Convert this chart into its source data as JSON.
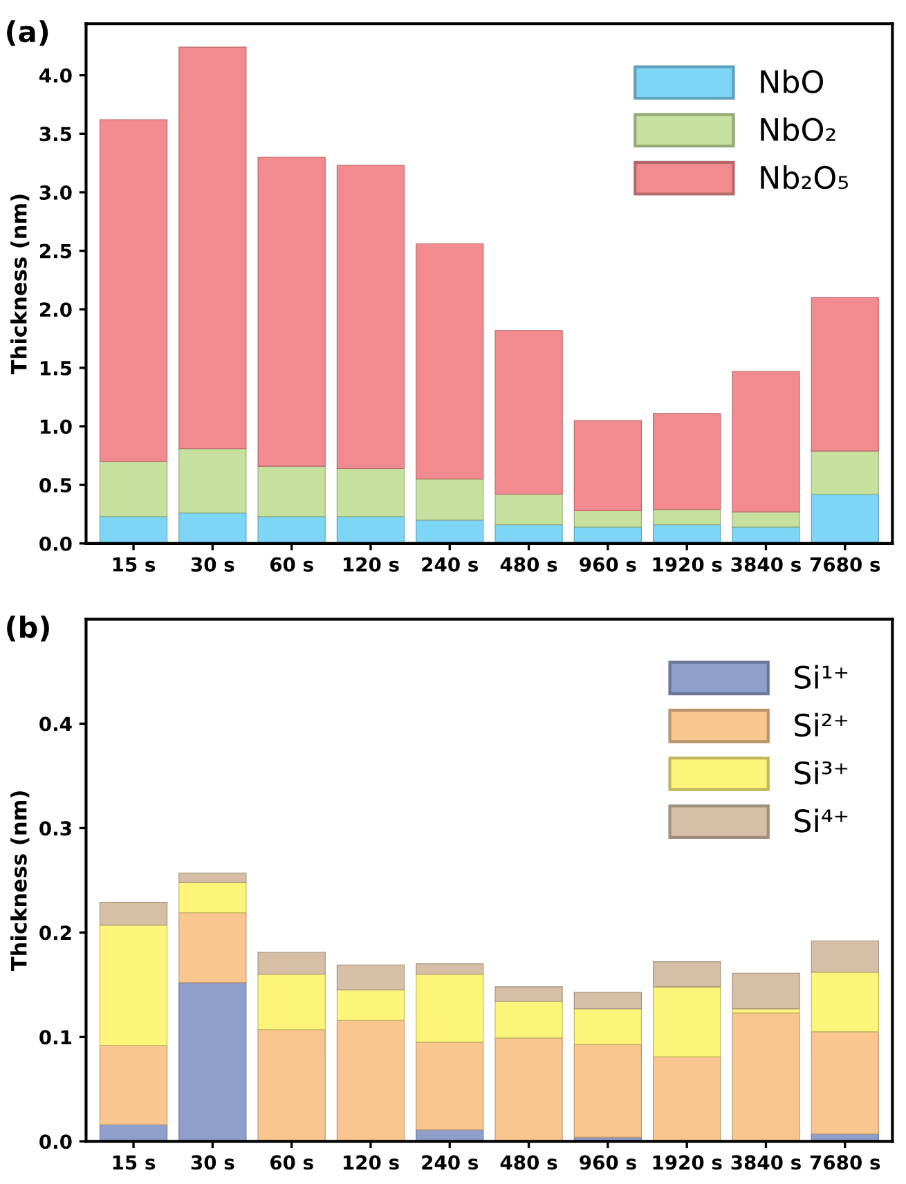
{
  "chart_data": [
    {
      "type": "bar",
      "title": "(a)",
      "ylabel": "Thickness (nm)",
      "stacked": true,
      "legend": "top right",
      "grid": false,
      "categories": [
        "15 s",
        "30 s",
        "60 s",
        "120 s",
        "240 s",
        "480 s",
        "960 s",
        "1920 s",
        "3840 s",
        "7680 s"
      ],
      "ylim": [
        0,
        4.44
      ],
      "yticks": [
        {
          "value": 0,
          "label": "0.0"
        },
        0.5,
        {
          "value": 1,
          "label": "1.0"
        },
        1.5,
        {
          "value": 2,
          "label": "2.0"
        },
        2.5,
        {
          "value": 3,
          "label": "3.0"
        },
        3.5,
        {
          "value": 4,
          "label": "4.0"
        }
      ],
      "series": [
        {
          "name": "NbO",
          "color": "#7dd6f5",
          "values": [
            0.23,
            0.26,
            0.23,
            0.23,
            0.2,
            0.16,
            0.14,
            0.16,
            0.14,
            0.42
          ]
        },
        {
          "name": "NbO₂",
          "color": "#c6e09e",
          "values": [
            0.47,
            0.55,
            0.43,
            0.41,
            0.35,
            0.26,
            0.14,
            0.13,
            0.13,
            0.37
          ]
        },
        {
          "name": "Nb₂O₅",
          "color": "#f28b8f",
          "values": [
            2.92,
            3.43,
            2.64,
            2.59,
            2.01,
            1.4,
            0.77,
            0.82,
            1.2,
            1.31
          ]
        }
      ]
    },
    {
      "type": "bar",
      "title": "(b)",
      "ylabel": "Thickness (nm)",
      "stacked": true,
      "legend": "top right",
      "grid": false,
      "categories": [
        "15 s",
        "30 s",
        "60 s",
        "120 s",
        "240 s",
        "480 s",
        "960 s",
        "1920 s",
        "3840 s",
        "7680 s"
      ],
      "ylim": [
        0,
        0.5
      ],
      "yticks": [
        {
          "value": 0,
          "label": "0.0"
        },
        0.1,
        0.2,
        0.3,
        0.4
      ],
      "series": [
        {
          "name": "Si¹⁺",
          "color": "#8f9fcc",
          "values": [
            0.016,
            0.152,
            0,
            0,
            0.011,
            0,
            0.004,
            0,
            0,
            0.007
          ]
        },
        {
          "name": "Si²⁺",
          "color": "#f8c68e",
          "values": [
            0.076,
            0.067,
            0.107,
            0.116,
            0.084,
            0.099,
            0.089,
            0.081,
            0.123,
            0.098
          ]
        },
        {
          "name": "Si³⁺",
          "color": "#fdf47a",
          "values": [
            0.115,
            0.029,
            0.053,
            0.029,
            0.065,
            0.035,
            0.034,
            0.067,
            0.004,
            0.057
          ]
        },
        {
          "name": "Si⁴⁺",
          "color": "#d6bfa5",
          "values": [
            0.022,
            0.009,
            0.021,
            0.024,
            0.01,
            0.014,
            0.016,
            0.024,
            0.034,
            0.03
          ]
        }
      ]
    }
  ]
}
